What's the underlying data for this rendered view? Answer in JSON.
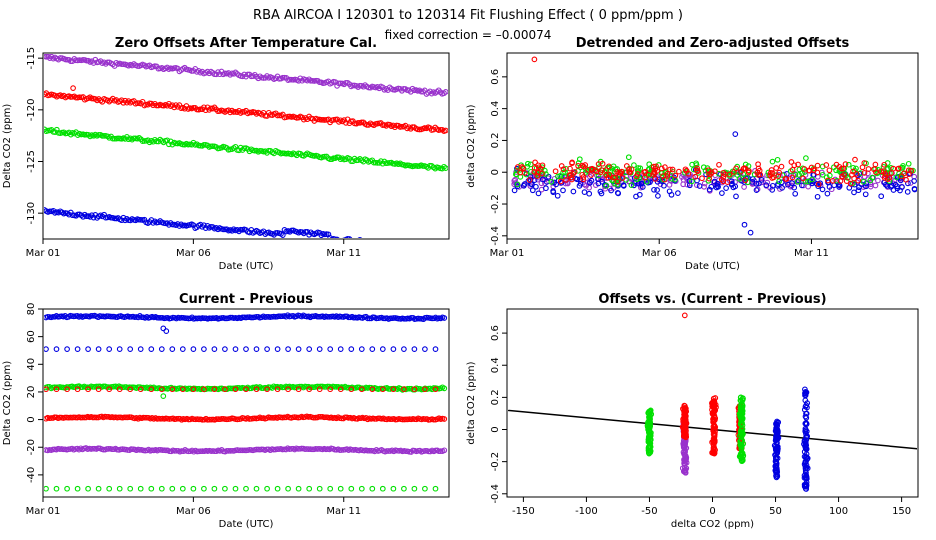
{
  "header": {
    "title": "RBA   AIRCOA I   120301 to 120314   Fit Flushing Effect ( 0 ppm/ppm )",
    "subtitle": "fixed correction = –0.00074"
  },
  "colors": {
    "red": "#ff0000",
    "green": "#00e000",
    "blue": "#0000e0",
    "purple": "#9932cc",
    "black": "#000000"
  },
  "chart_data": [
    {
      "type": "scatter",
      "title": "Zero Offsets After Temperature Cal.",
      "xlabel": "Date (UTC)",
      "ylabel": "Delta CO2 (ppm)",
      "x_ticks": [
        "Mar 01",
        "Mar 06",
        "Mar 11"
      ],
      "xlim": [
        0,
        13.5
      ],
      "x_tick_pos": [
        0,
        5,
        10
      ],
      "ylim": [
        -132.5,
        -114.5
      ],
      "y_ticks": [
        -130,
        -125,
        -120,
        -115
      ],
      "series": [
        {
          "color": "purple",
          "start": -114.9,
          "end": -118.4
        },
        {
          "color": "red",
          "start": -118.5,
          "end": -122.0
        },
        {
          "color": "green",
          "start": -122.0,
          "end": -125.7
        },
        {
          "color": "blue",
          "start": -129.8,
          "end": -133.6
        }
      ],
      "outliers": [
        {
          "x": 1.0,
          "y": -117.9,
          "color": "red"
        }
      ]
    },
    {
      "type": "scatter",
      "title": "Detrended and Zero-adjusted Offsets",
      "xlabel": "Date (UTC)",
      "ylabel": "delta CO2 (ppm)",
      "x_ticks": [
        "Mar 01",
        "Mar 06",
        "Mar 11"
      ],
      "xlim": [
        0,
        13.5
      ],
      "x_tick_pos": [
        0,
        5,
        10
      ],
      "ylim": [
        -0.42,
        0.75
      ],
      "y_ticks": [
        -0.4,
        -0.2,
        0.0,
        0.2,
        0.4,
        0.6
      ],
      "series": [
        {
          "color": "red",
          "mean": 0.0,
          "spread": 0.08
        },
        {
          "color": "green",
          "mean": 0.0,
          "spread": 0.08
        },
        {
          "color": "blue",
          "mean": -0.07,
          "spread": 0.1
        },
        {
          "color": "purple",
          "mean": -0.05,
          "spread": 0.07
        }
      ],
      "outliers": [
        {
          "x": 0.9,
          "y": 0.71,
          "color": "red"
        },
        {
          "x": 7.5,
          "y": 0.24,
          "color": "blue"
        },
        {
          "x": 8.0,
          "y": -0.38,
          "color": "blue"
        },
        {
          "x": 7.8,
          "y": -0.33,
          "color": "blue"
        }
      ]
    },
    {
      "type": "scatter",
      "title": "Current - Previous",
      "xlabel": "Date (UTC)",
      "ylabel": "Delta CO2 (ppm)",
      "x_ticks": [
        "Mar 01",
        "Mar 06",
        "Mar 11"
      ],
      "xlim": [
        0,
        13.5
      ],
      "x_tick_pos": [
        0,
        5,
        10
      ],
      "ylim": [
        -56,
        80
      ],
      "y_ticks": [
        -40,
        -20,
        0,
        20,
        40,
        60,
        80
      ],
      "series": [
        {
          "color": "blue",
          "level": 74,
          "style": "dense"
        },
        {
          "color": "blue",
          "level": 51,
          "style": "sparse"
        },
        {
          "color": "green",
          "level": 23,
          "style": "dense"
        },
        {
          "color": "red",
          "level": 22,
          "style": "sparse"
        },
        {
          "color": "red",
          "level": 1,
          "style": "dense"
        },
        {
          "color": "purple",
          "level": -22,
          "style": "dense"
        },
        {
          "color": "green",
          "level": -50,
          "style": "sparse"
        }
      ]
    },
    {
      "type": "scatter",
      "title": "Offsets vs. (Current - Previous)",
      "xlabel": "delta CO2 (ppm)",
      "ylabel": "delta CO2 (ppm)",
      "xlim": [
        -163,
        163
      ],
      "x_ticks": [
        -150,
        -100,
        -50,
        0,
        50,
        100,
        150
      ],
      "ylim": [
        -0.42,
        0.75
      ],
      "y_ticks": [
        -0.4,
        -0.2,
        0.0,
        0.2,
        0.4,
        0.6
      ],
      "clusters": [
        {
          "x": -50,
          "color": "green",
          "ymin": -0.15,
          "ymax": 0.12
        },
        {
          "x": -22,
          "color": "purple",
          "ymin": -0.28,
          "ymax": 0.05
        },
        {
          "x": -22,
          "color": "red",
          "ymin": -0.05,
          "ymax": 0.15
        },
        {
          "x": 1,
          "color": "red",
          "ymin": -0.15,
          "ymax": 0.2
        },
        {
          "x": 22,
          "color": "red",
          "ymin": -0.12,
          "ymax": 0.15
        },
        {
          "x": 23,
          "color": "green",
          "ymin": -0.2,
          "ymax": 0.2
        },
        {
          "x": 51,
          "color": "blue",
          "ymin": -0.3,
          "ymax": 0.05
        },
        {
          "x": 74,
          "color": "blue",
          "ymin": -0.38,
          "ymax": 0.25
        }
      ],
      "outliers": [
        {
          "x": -22,
          "y": 0.71,
          "color": "red"
        }
      ],
      "fit_line": {
        "x": [
          -163,
          163
        ],
        "y": [
          0.12,
          -0.12
        ]
      }
    }
  ]
}
